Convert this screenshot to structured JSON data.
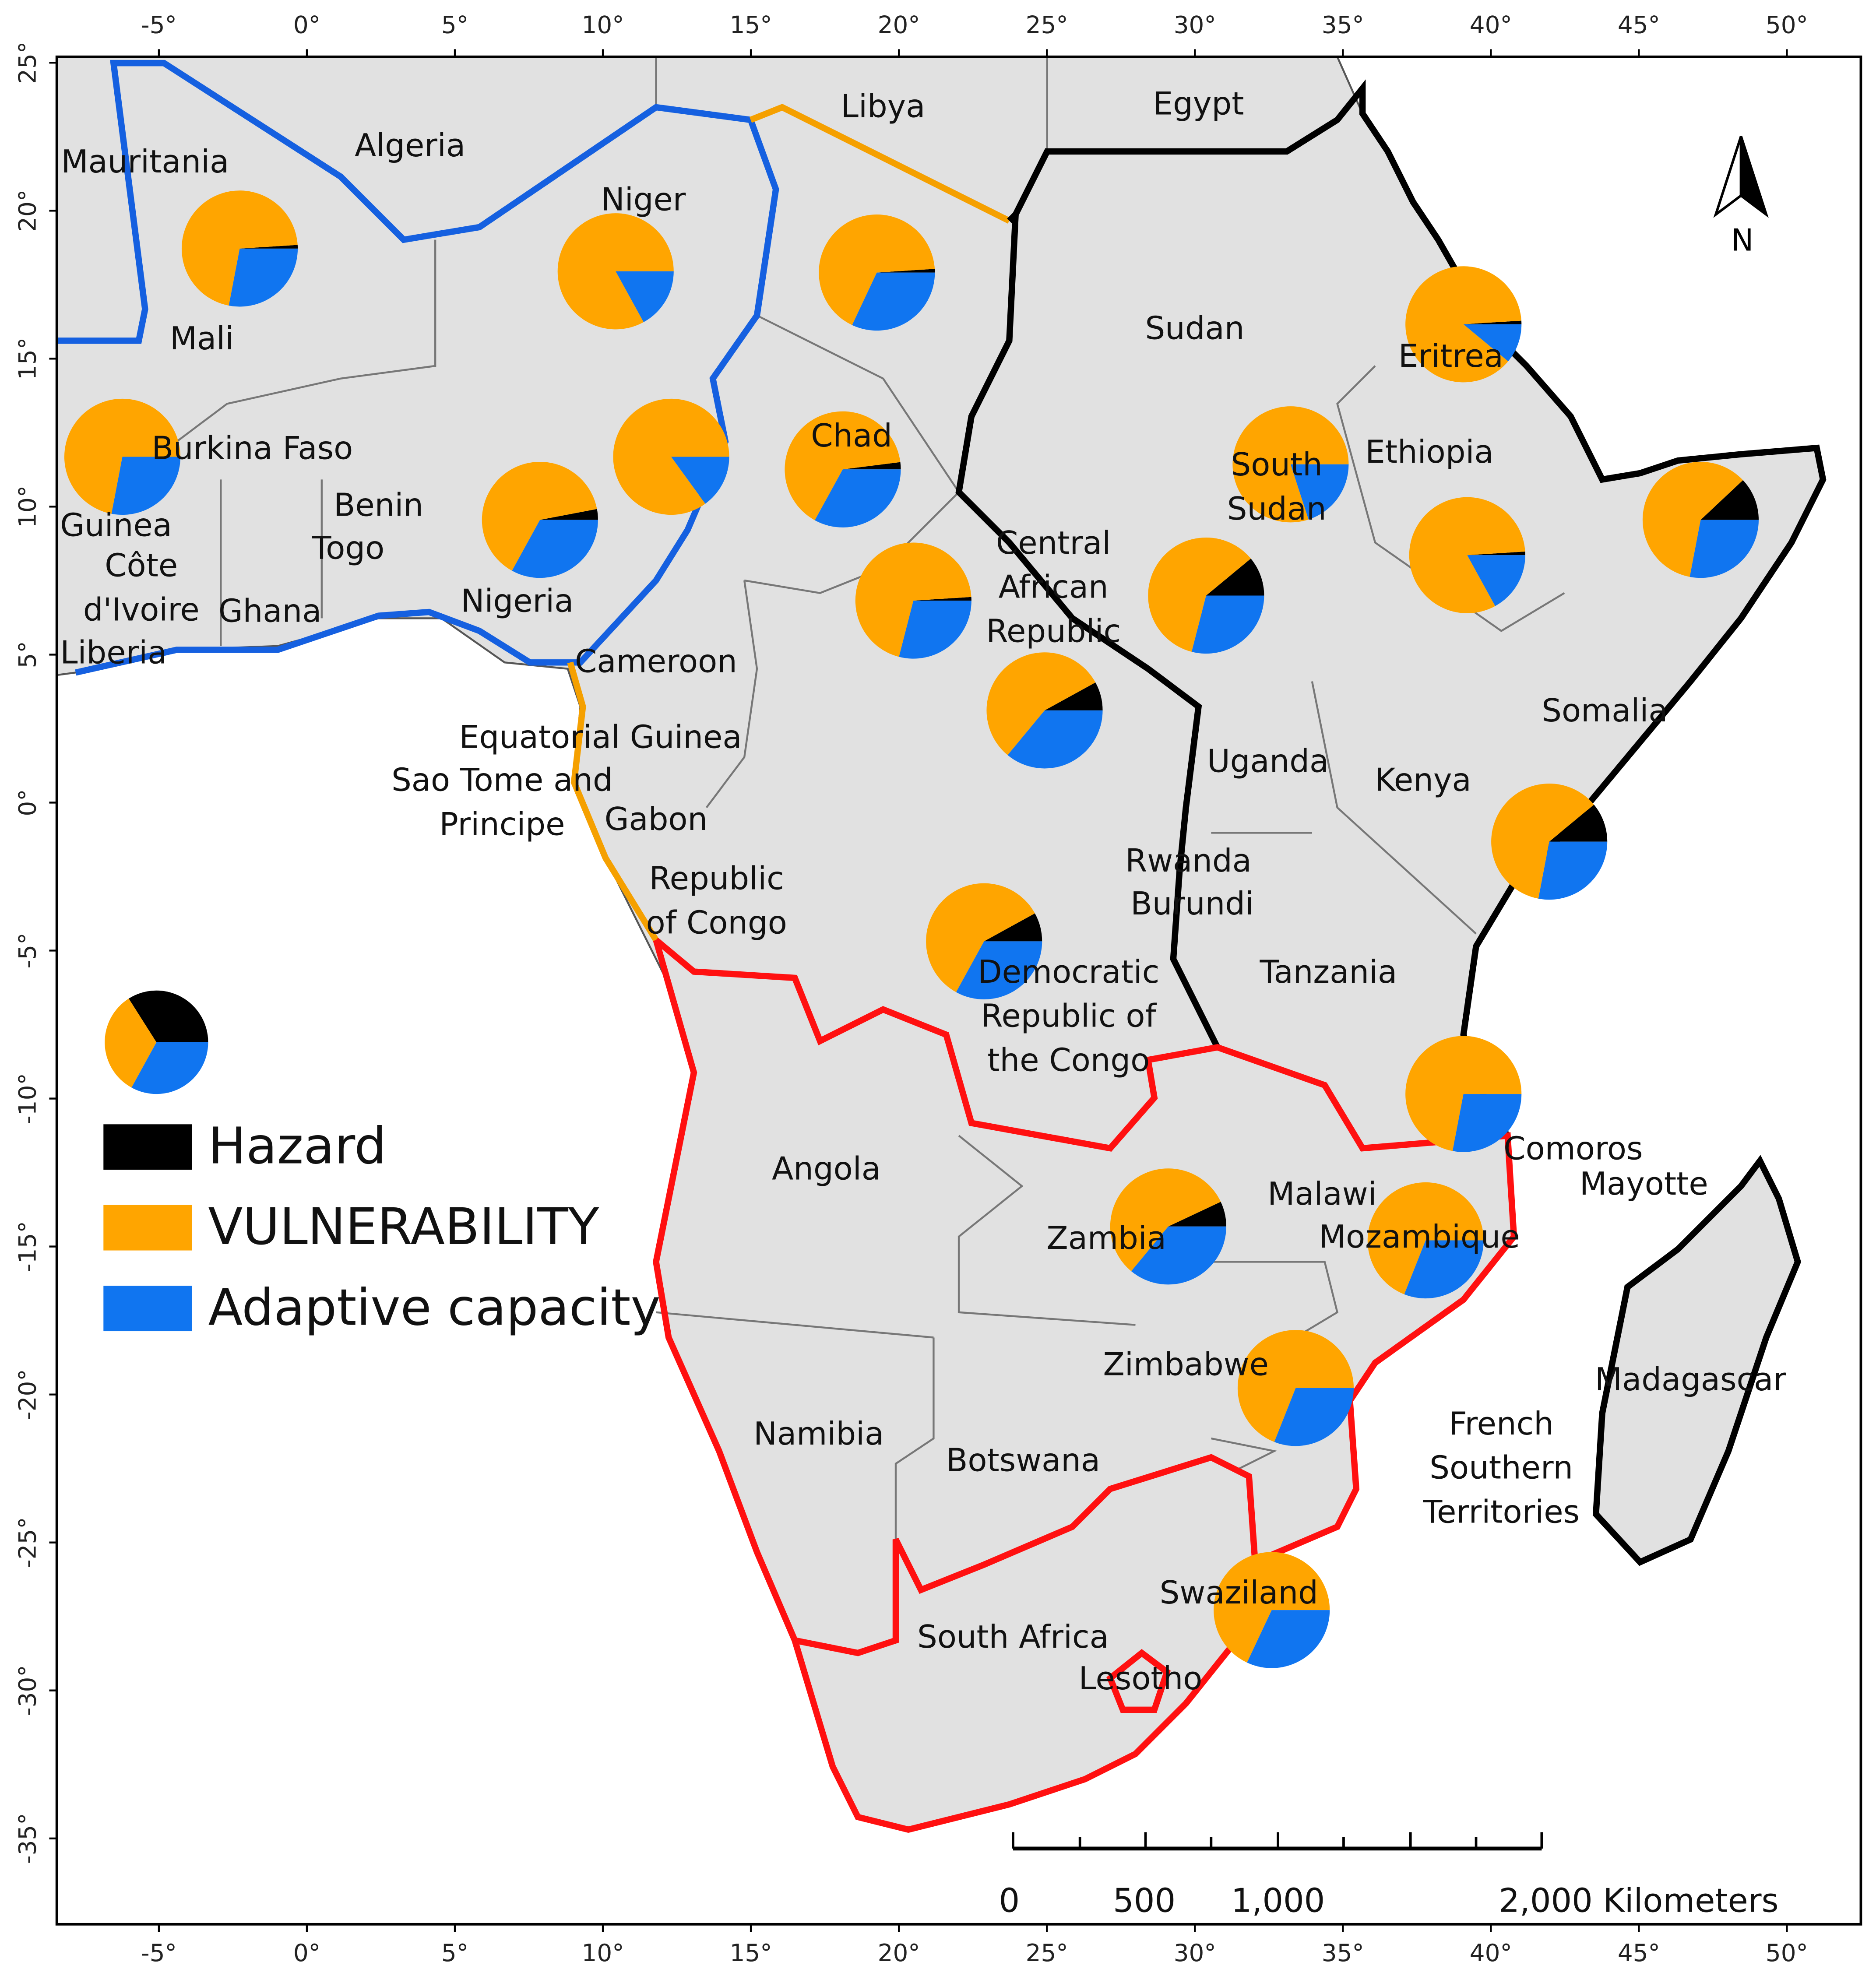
{
  "chart_data": {
    "type": "pie_map",
    "xlim": [
      -8.45,
      52.5
    ],
    "ylim": [
      -37.9,
      25.2
    ],
    "xticks": [
      {
        "value": -5,
        "label": "-5°"
      },
      {
        "value": 0,
        "label": "0°"
      },
      {
        "value": 5,
        "label": "5°"
      },
      {
        "value": 10,
        "label": "10°"
      },
      {
        "value": 15,
        "label": "15°"
      },
      {
        "value": 20,
        "label": "20°"
      },
      {
        "value": 25,
        "label": "25°"
      },
      {
        "value": 30,
        "label": "30°"
      },
      {
        "value": 35,
        "label": "35°"
      },
      {
        "value": 40,
        "label": "40°"
      },
      {
        "value": 45,
        "label": "45°"
      },
      {
        "value": 50,
        "label": "50°"
      }
    ],
    "yticks": [
      {
        "value": 25,
        "label": "25°"
      },
      {
        "value": 20,
        "label": "20°"
      },
      {
        "value": 15,
        "label": "15°"
      },
      {
        "value": 10,
        "label": "10°"
      },
      {
        "value": 5,
        "label": "5°"
      },
      {
        "value": 0,
        "label": "0°"
      },
      {
        "value": -5,
        "label": "-5°"
      },
      {
        "value": -10,
        "label": "-10°"
      },
      {
        "value": -15,
        "label": "-15°"
      },
      {
        "value": -20,
        "label": "-20°"
      },
      {
        "value": -25,
        "label": "-25°"
      },
      {
        "value": -30,
        "label": "-30°"
      },
      {
        "value": -35,
        "label": "-35°"
      }
    ],
    "legend": [
      {
        "name": "Hazard",
        "color": "#000000"
      },
      {
        "name": "VULNERABILITY",
        "color": "#ffa500"
      },
      {
        "name": "Adaptive capacity",
        "color": "#1075f0"
      }
    ],
    "legend_sample": [
      34,
      33,
      33
    ],
    "pies": [
      [
        1,
        71,
        28
      ],
      [
        0,
        83,
        17
      ],
      [
        1,
        67,
        32
      ],
      [
        1,
        88,
        11
      ],
      [
        0,
        72,
        28
      ],
      [
        0,
        85,
        15
      ],
      [
        3,
        64,
        33
      ],
      [
        2,
        65,
        33
      ],
      [
        0,
        80,
        20
      ],
      [
        1,
        82,
        17
      ],
      [
        12,
        60,
        28
      ],
      [
        1,
        70,
        29
      ],
      [
        11,
        60,
        29
      ],
      [
        8,
        56,
        36
      ],
      [
        11,
        61,
        28
      ],
      [
        8,
        59,
        33
      ],
      [
        0,
        72,
        28
      ],
      [
        7,
        57,
        36
      ],
      [
        0,
        69,
        31
      ],
      [
        0,
        69,
        31
      ],
      [
        0,
        68,
        32
      ]
    ]
  },
  "countries": [
    [
      "Mauritania"
    ],
    [
      "Algeria"
    ],
    [
      "Niger"
    ],
    [
      "Libya"
    ],
    [
      "Egypt"
    ],
    [
      "Mali"
    ],
    [
      "Sudan"
    ],
    [
      "Eritrea"
    ],
    [
      "Burkina Faso"
    ],
    [
      "Chad"
    ],
    [
      "South",
      "Sudan"
    ],
    [
      "Ethiopia"
    ],
    [
      "Guinea"
    ],
    [
      "Côte",
      "d'Ivoire"
    ],
    [
      "Benin"
    ],
    [
      "Togo"
    ],
    [
      "Ghana"
    ],
    [
      "Nigeria"
    ],
    [
      "Liberia"
    ],
    [
      "Central",
      "African",
      "Republic"
    ],
    [
      "Cameroon"
    ],
    [
      "Somalia"
    ],
    [
      "Equatorial Guinea"
    ],
    [
      "Sao Tome and",
      "Principe"
    ],
    [
      "Uganda"
    ],
    [
      "Kenya"
    ],
    [
      "Gabon"
    ],
    [
      "Rwanda"
    ],
    [
      "Burundi"
    ],
    [
      "Republic",
      "of Congo"
    ],
    [
      "Tanzania"
    ],
    [
      "Democratic",
      "Republic of",
      "the Congo"
    ],
    [
      "Comoros"
    ],
    [
      "Mayotte"
    ],
    [
      "Angola"
    ],
    [
      "Malawi"
    ],
    [
      "Zambia"
    ],
    [
      "Mozambique"
    ],
    [
      "Madagascar"
    ],
    [
      "Zimbabwe"
    ],
    [
      "Namibia"
    ],
    [
      "French",
      "Southern",
      "Territories"
    ],
    [
      "Botswana"
    ],
    [
      "Swaziland"
    ],
    [
      "South Africa"
    ],
    [
      "Lesotho"
    ]
  ],
  "north_arrow": "N",
  "scale_bar": {
    "labels": [
      "0",
      "500",
      "1,000",
      "2,000 Kilometers"
    ]
  }
}
